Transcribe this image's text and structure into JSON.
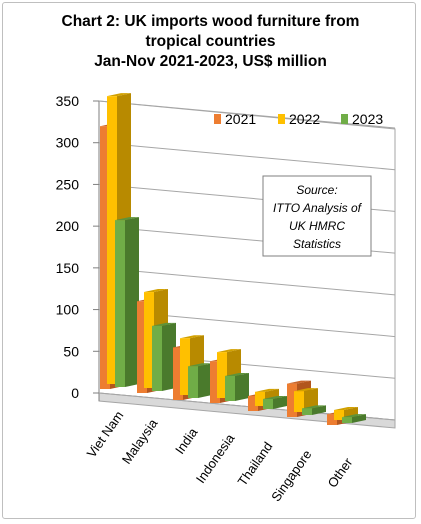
{
  "chart_data": {
    "type": "bar",
    "title": [
      "Chart 2: UK imports wood furniture from",
      "tropical countries",
      "Jan-Nov 2021-2023, US$ million"
    ],
    "categories": [
      "Viet Nam",
      "Malaysia",
      "India",
      "Indonesia",
      "Thailand",
      "Singapore",
      "Other"
    ],
    "series": [
      {
        "name": "2021",
        "values": [
          315,
          110,
          63,
          50,
          18,
          40,
          13
        ]
      },
      {
        "name": "2022",
        "values": [
          345,
          115,
          68,
          55,
          17,
          25,
          12
        ]
      },
      {
        "name": "2023",
        "values": [
          200,
          78,
          38,
          30,
          12,
          8,
          7
        ]
      }
    ],
    "yticks": [
      "0",
      "50",
      "100",
      "150",
      "200",
      "250",
      "300",
      "350"
    ],
    "ylim": [
      0,
      350
    ],
    "legend_position": "top-right",
    "source_note": [
      "Source:",
      "ITTO Analysis of",
      "UK HMRC",
      "Statistics"
    ],
    "colors": {
      "2021": {
        "front": "#ED7D31",
        "side": "#B2561D",
        "top": "#C8652A"
      },
      "2022": {
        "front": "#FFC000",
        "side": "#B88A00",
        "top": "#D2A100"
      },
      "2023": {
        "front": "#70AD47",
        "side": "#4A7A2C",
        "top": "#5E9339"
      }
    }
  }
}
